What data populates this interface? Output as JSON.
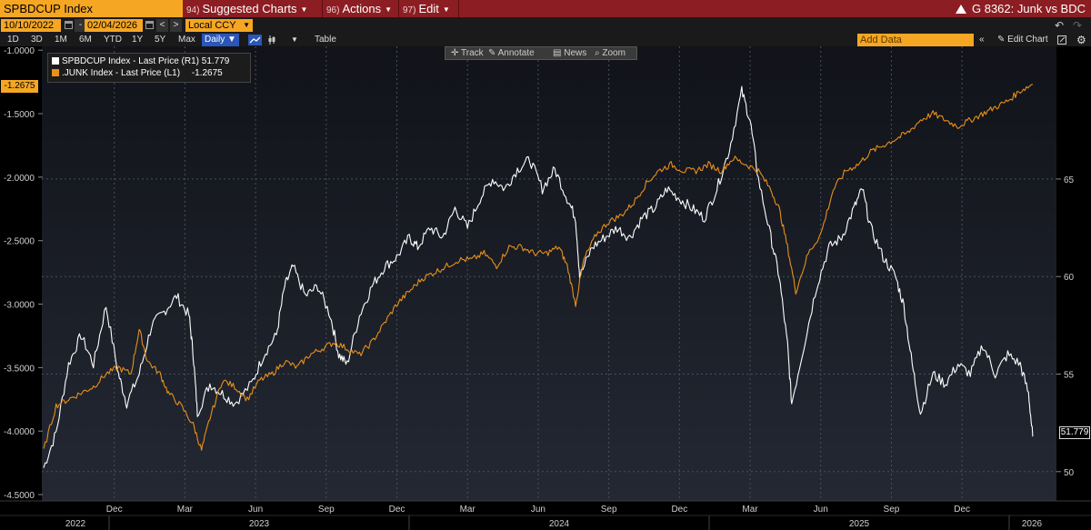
{
  "header": {
    "ticker": "SPBDCUP Index",
    "menus": [
      {
        "num": "94)",
        "label": "Suggested Charts"
      },
      {
        "num": "96)",
        "label": "Actions"
      },
      {
        "num": "97)",
        "label": "Edit"
      }
    ],
    "chart_title": "G 8362: Junk vs BDC"
  },
  "range": {
    "start": "10/10/2022",
    "end": "02/04/2026",
    "currency": "Local CCY",
    "nav_left": "<",
    "nav_right": ">"
  },
  "periods": [
    "1D",
    "3D",
    "1M",
    "6M",
    "YTD",
    "1Y",
    "5Y",
    "Max"
  ],
  "frequency": "Daily",
  "view_table": "Table",
  "add_data_placeholder": "Add Data",
  "edit_chart": "Edit Chart",
  "toolbar": {
    "track": "Track",
    "annotate": "Annotate",
    "news": "News",
    "zoom": "Zoom"
  },
  "legend": [
    {
      "label": "SPBDCUP Index - Last Price (R1)",
      "value": "51.779",
      "color": "#ffffff"
    },
    {
      "label": ".JUNK Index - Last Price (L1)",
      "value": "-1.2675",
      "color": "#e8901a"
    }
  ],
  "last_labels": {
    "left": "-1.2675",
    "right": "51.779"
  },
  "colors": {
    "accent": "#f5a623",
    "title_bar": "#8c1d22",
    "series_orange": "#e8901a",
    "series_white": "#ffffff"
  },
  "chart_data": {
    "type": "line",
    "title": "G 8362: Junk vs BDC",
    "left_axis": {
      "series": ".JUNK Index",
      "ylim": [
        -4.55,
        -0.97
      ],
      "ticks": [
        "-1.0000",
        "-1.5000",
        "-2.0000",
        "-2.5000",
        "-3.0000",
        "-3.5000",
        "-4.0000",
        "-4.5000"
      ]
    },
    "right_axis": {
      "series": "SPBDCUP Index",
      "ylim": [
        48.5,
        71.8
      ],
      "ticks": [
        "50",
        "55",
        "60",
        "65"
      ]
    },
    "x_month_labels": [
      "Dec",
      "Mar",
      "Jun",
      "Sep",
      "Dec",
      "Mar",
      "Jun",
      "Sep",
      "Dec",
      "Mar",
      "Jun",
      "Sep",
      "Dec"
    ],
    "x_year_labels": [
      "2022",
      "2023",
      "2024",
      "2025",
      "2026"
    ],
    "x_range": [
      "2022-10",
      "2026-02"
    ],
    "grid": true,
    "series": [
      {
        "name": "SPBDCUP Index - Last Price (R1)",
        "axis": "right",
        "color": "#ffffff",
        "points": [
          [
            0,
            50.2
          ],
          [
            0.3,
            52.0
          ],
          [
            0.6,
            55.5
          ],
          [
            0.9,
            57.0
          ],
          [
            1.2,
            55.5
          ],
          [
            1.5,
            58.5
          ],
          [
            1.8,
            55.0
          ],
          [
            2.0,
            53.5
          ],
          [
            2.3,
            55.0
          ],
          [
            2.6,
            57.5
          ],
          [
            2.9,
            58.2
          ],
          [
            3.2,
            59.0
          ],
          [
            3.5,
            58.0
          ],
          [
            3.6,
            56.0
          ],
          [
            3.7,
            53.0
          ],
          [
            4.0,
            54.5
          ],
          [
            4.3,
            54.0
          ],
          [
            4.6,
            53.5
          ],
          [
            5.0,
            54.5
          ],
          [
            5.3,
            56.0
          ],
          [
            5.6,
            57.0
          ],
          [
            5.8,
            59.5
          ],
          [
            6.0,
            60.5
          ],
          [
            6.3,
            59.0
          ],
          [
            6.6,
            59.5
          ],
          [
            6.9,
            58.0
          ],
          [
            7.1,
            56.0
          ],
          [
            7.3,
            55.5
          ],
          [
            7.6,
            58.0
          ],
          [
            7.9,
            59.5
          ],
          [
            8.2,
            60.5
          ],
          [
            8.5,
            61.0
          ],
          [
            8.8,
            62.0
          ],
          [
            9.0,
            61.5
          ],
          [
            9.3,
            62.5
          ],
          [
            9.6,
            62.0
          ],
          [
            9.9,
            63.5
          ],
          [
            10.2,
            62.5
          ],
          [
            10.5,
            64.0
          ],
          [
            10.8,
            65.0
          ],
          [
            11.1,
            64.5
          ],
          [
            11.4,
            65.5
          ],
          [
            11.7,
            66.0
          ],
          [
            12.0,
            64.5
          ],
          [
            12.3,
            65.5
          ],
          [
            12.6,
            64.0
          ],
          [
            12.8,
            63.0
          ],
          [
            12.9,
            60.0
          ],
          [
            13.2,
            61.5
          ],
          [
            13.5,
            62.0
          ],
          [
            13.8,
            62.5
          ],
          [
            14.1,
            62.0
          ],
          [
            14.4,
            63.0
          ],
          [
            14.7,
            63.5
          ],
          [
            15.0,
            64.5
          ],
          [
            15.3,
            64.0
          ],
          [
            15.6,
            63.5
          ],
          [
            15.9,
            63.0
          ],
          [
            16.2,
            64.5
          ],
          [
            16.5,
            66.5
          ],
          [
            16.8,
            69.5
          ],
          [
            17.0,
            68.0
          ],
          [
            17.2,
            65.0
          ],
          [
            17.5,
            62.0
          ],
          [
            17.7,
            60.0
          ],
          [
            17.9,
            56.5
          ],
          [
            18.0,
            53.5
          ],
          [
            18.3,
            56.5
          ],
          [
            18.6,
            59.5
          ],
          [
            18.9,
            61.5
          ],
          [
            19.2,
            62.0
          ],
          [
            19.5,
            63.5
          ],
          [
            19.7,
            64.5
          ],
          [
            19.9,
            62.5
          ],
          [
            20.2,
            61.0
          ],
          [
            20.5,
            60.0
          ],
          [
            20.7,
            58.5
          ],
          [
            20.9,
            55.5
          ],
          [
            21.1,
            53.0
          ],
          [
            21.4,
            55.0
          ],
          [
            21.7,
            54.5
          ],
          [
            22.0,
            55.5
          ],
          [
            22.3,
            55.0
          ],
          [
            22.6,
            56.5
          ],
          [
            22.9,
            55.0
          ],
          [
            23.2,
            56.0
          ],
          [
            23.5,
            55.5
          ],
          [
            23.7,
            54.0
          ],
          [
            23.8,
            51.8
          ]
        ]
      },
      {
        "name": ".JUNK Index - Last Price (L1)",
        "axis": "left",
        "color": "#e8901a",
        "points": [
          [
            0,
            -4.15
          ],
          [
            0.3,
            -3.8
          ],
          [
            0.6,
            -3.75
          ],
          [
            0.9,
            -3.7
          ],
          [
            1.2,
            -3.65
          ],
          [
            1.5,
            -3.55
          ],
          [
            1.8,
            -3.5
          ],
          [
            2.1,
            -3.55
          ],
          [
            2.3,
            -3.2
          ],
          [
            2.5,
            -3.45
          ],
          [
            2.8,
            -3.55
          ],
          [
            3.0,
            -3.7
          ],
          [
            3.3,
            -3.8
          ],
          [
            3.6,
            -3.95
          ],
          [
            3.8,
            -4.15
          ],
          [
            4.0,
            -3.9
          ],
          [
            4.3,
            -3.6
          ],
          [
            4.6,
            -3.65
          ],
          [
            4.9,
            -3.75
          ],
          [
            5.2,
            -3.6
          ],
          [
            5.5,
            -3.55
          ],
          [
            5.8,
            -3.45
          ],
          [
            6.1,
            -3.5
          ],
          [
            6.4,
            -3.4
          ],
          [
            6.7,
            -3.35
          ],
          [
            7.0,
            -3.3
          ],
          [
            7.3,
            -3.35
          ],
          [
            7.6,
            -3.4
          ],
          [
            7.9,
            -3.3
          ],
          [
            8.2,
            -3.15
          ],
          [
            8.5,
            -3.0
          ],
          [
            8.8,
            -2.9
          ],
          [
            9.1,
            -2.8
          ],
          [
            9.4,
            -2.75
          ],
          [
            9.7,
            -2.7
          ],
          [
            10.0,
            -2.65
          ],
          [
            10.3,
            -2.65
          ],
          [
            10.6,
            -2.6
          ],
          [
            10.9,
            -2.7
          ],
          [
            11.2,
            -2.55
          ],
          [
            11.5,
            -2.55
          ],
          [
            11.8,
            -2.6
          ],
          [
            12.1,
            -2.6
          ],
          [
            12.4,
            -2.55
          ],
          [
            12.6,
            -2.7
          ],
          [
            12.8,
            -3.0
          ],
          [
            13.0,
            -2.65
          ],
          [
            13.3,
            -2.45
          ],
          [
            13.6,
            -2.35
          ],
          [
            13.9,
            -2.3
          ],
          [
            14.2,
            -2.2
          ],
          [
            14.5,
            -2.05
          ],
          [
            14.8,
            -1.95
          ],
          [
            15.1,
            -1.9
          ],
          [
            15.4,
            -1.95
          ],
          [
            15.7,
            -1.95
          ],
          [
            16.0,
            -1.9
          ],
          [
            16.3,
            -1.95
          ],
          [
            16.6,
            -1.85
          ],
          [
            16.9,
            -1.9
          ],
          [
            17.2,
            -1.95
          ],
          [
            17.5,
            -2.1
          ],
          [
            17.7,
            -2.25
          ],
          [
            17.9,
            -2.55
          ],
          [
            18.1,
            -2.9
          ],
          [
            18.4,
            -2.6
          ],
          [
            18.7,
            -2.45
          ],
          [
            19.0,
            -2.1
          ],
          [
            19.3,
            -1.95
          ],
          [
            19.6,
            -1.9
          ],
          [
            19.9,
            -1.8
          ],
          [
            20.2,
            -1.75
          ],
          [
            20.5,
            -1.7
          ],
          [
            20.8,
            -1.65
          ],
          [
            21.1,
            -1.55
          ],
          [
            21.4,
            -1.5
          ],
          [
            21.7,
            -1.55
          ],
          [
            22.0,
            -1.6
          ],
          [
            22.3,
            -1.55
          ],
          [
            22.6,
            -1.5
          ],
          [
            22.9,
            -1.45
          ],
          [
            23.2,
            -1.4
          ],
          [
            23.5,
            -1.32
          ],
          [
            23.8,
            -1.2675
          ]
        ]
      }
    ]
  }
}
